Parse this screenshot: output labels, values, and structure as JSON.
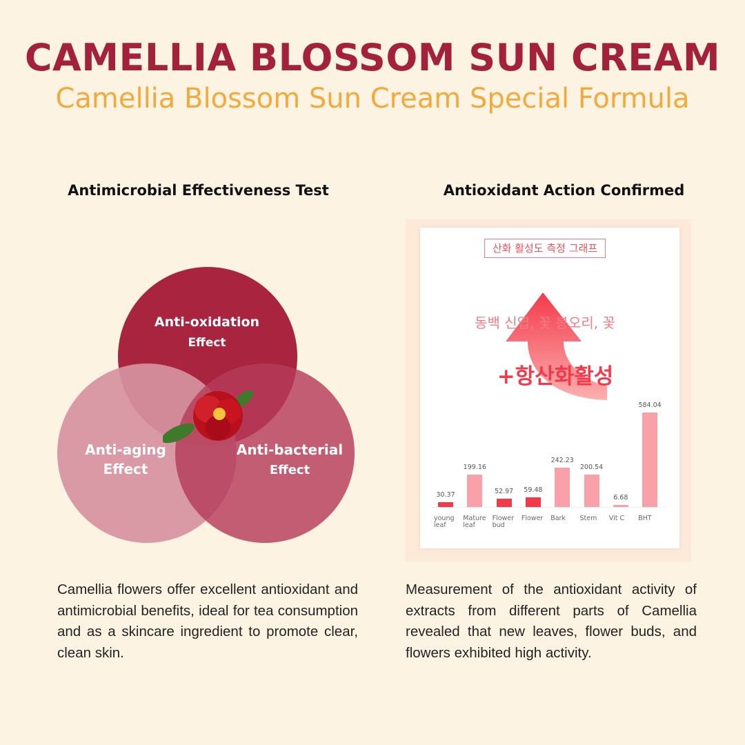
{
  "header": {
    "title": "CAMELLIA BLOSSOM SUN CREAM",
    "subtitle": "Camellia Blossom Sun Cream Special Formula"
  },
  "left": {
    "heading": "Antimicrobial Effectiveness Test",
    "venn": [
      {
        "line1": "Anti-oxidation",
        "line2": "Effect",
        "color": "#a8243f"
      },
      {
        "line1": "Anti-aging",
        "line2": "Effect",
        "color": "#d6939f"
      },
      {
        "line1": "Anti-bacterial",
        "line2": "Effect",
        "color": "#bd4f68"
      }
    ],
    "description": "Camellia flowers offer excellent antioxidant and antimicrobial benefits, ideal for tea consumption and as a skincare ingredient to promote clear, clean skin."
  },
  "right": {
    "heading": "Antioxidant Action Confirmed",
    "chart_box_label": "산화 활성도 측정 그래프",
    "arrow_caption": "동백 신엽, 꽃 봉오리, 꽃",
    "arrow_headline": "+항산화활성",
    "description": "Measurement of the antioxidant activity of extracts from different parts of Camellia revealed that new leaves, flower buds, and flowers exhibited high activity."
  },
  "chart_data": {
    "type": "bar",
    "title": "산화 활성도 측정 그래프",
    "categories": [
      "young leaf",
      "Mature leaf",
      "Flower bud",
      "Flower",
      "Bark",
      "Stem",
      "Vit C",
      "BHT"
    ],
    "values": [
      30.37,
      199.16,
      52.97,
      59.48,
      242.23,
      200.54,
      6.68,
      584.04
    ],
    "value_labels": [
      "30.37",
      "199.16",
      "52.97",
      "59.48",
      "242.23",
      "200.54",
      "6.68",
      "584.04"
    ],
    "highlighted": [
      true,
      false,
      true,
      true,
      false,
      false,
      false,
      false
    ],
    "colors": {
      "highlight": "#f33a4a",
      "normal": "#f9a1a8"
    },
    "ylim": [
      0,
      600
    ],
    "grid": false
  }
}
